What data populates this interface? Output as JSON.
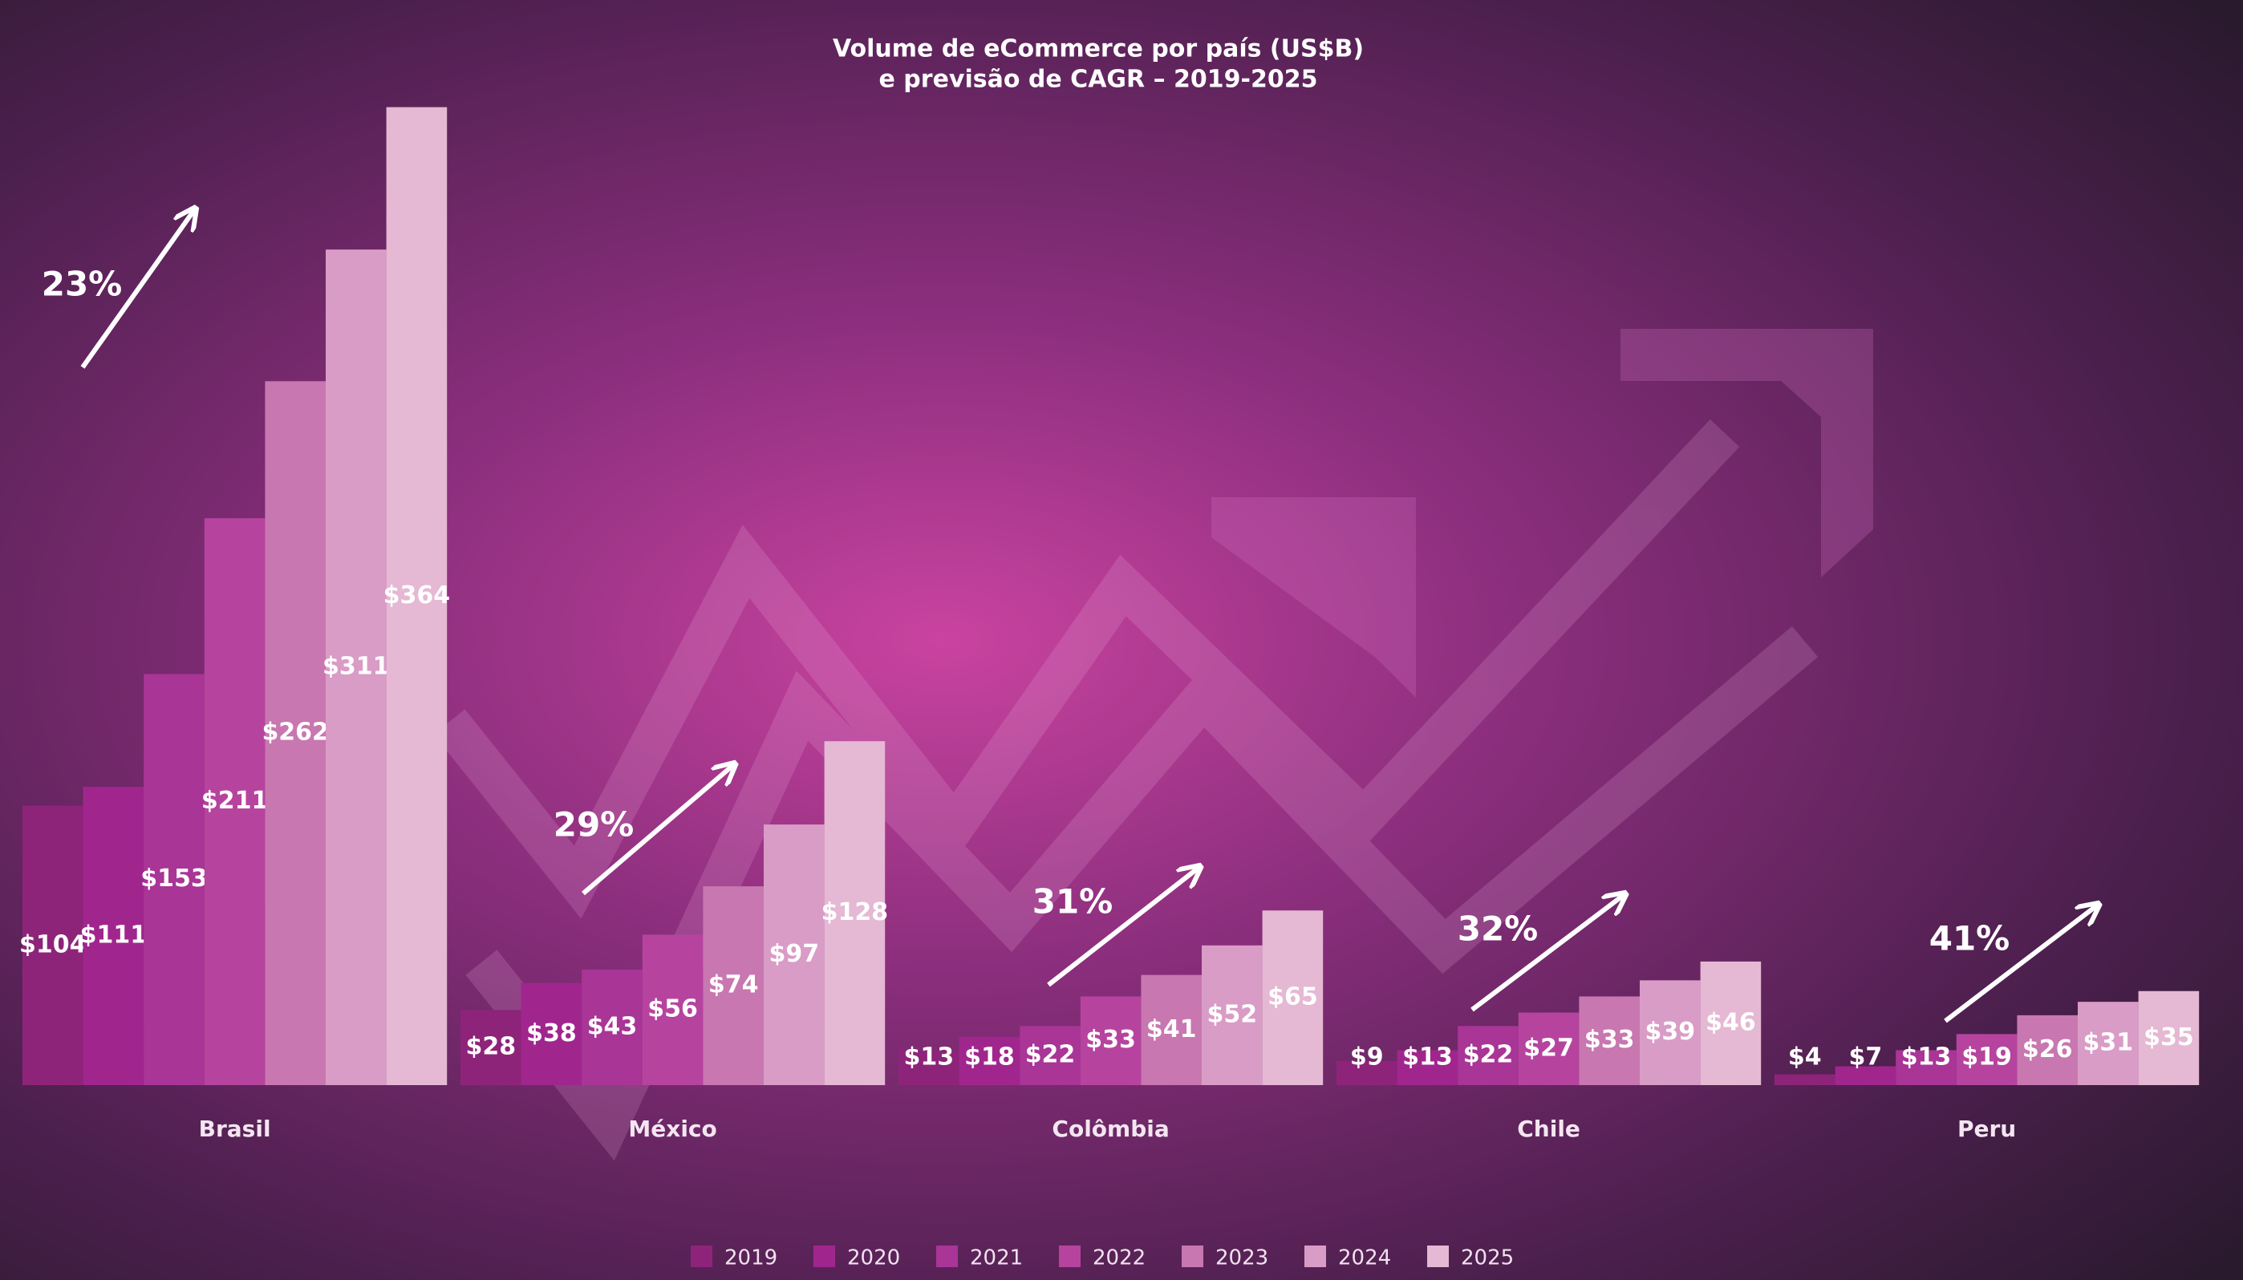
{
  "chart_data": {
    "type": "bar",
    "title": "Volume de eCommerce por país (US$B)",
    "subtitle": "e previsão de CAGR – 2019-2025",
    "categories": [
      "Brasil",
      "México",
      "Colômbia",
      "Chile",
      "Peru"
    ],
    "series": [
      {
        "name": "2019",
        "color": "#8e2479",
        "values": [
          104,
          28,
          13,
          9,
          4
        ],
        "value_labels": [
          "$104",
          "$28",
          "$13",
          "$9",
          "$4"
        ]
      },
      {
        "name": "2020",
        "color": "#a0268e",
        "values": [
          111,
          38,
          18,
          13,
          7
        ],
        "value_labels": [
          "$111",
          "$38",
          "$18",
          "$13",
          "$7"
        ]
      },
      {
        "name": "2021",
        "color": "#a93597",
        "values": [
          153,
          43,
          22,
          22,
          13
        ],
        "value_labels": [
          "$153",
          "$43",
          "$22",
          "$22",
          "$13"
        ]
      },
      {
        "name": "2022",
        "color": "#b6449f",
        "values": [
          211,
          56,
          33,
          27,
          19
        ],
        "value_labels": [
          "$211",
          "$56",
          "$33",
          "$27",
          "$19"
        ]
      },
      {
        "name": "2023",
        "color": "#c877b0",
        "values": [
          262,
          74,
          41,
          33,
          26
        ],
        "value_labels": [
          "$262",
          "$74",
          "$41",
          "$33",
          "$26"
        ]
      },
      {
        "name": "2024",
        "color": "#d99cc6",
        "values": [
          311,
          97,
          52,
          39,
          31
        ],
        "value_labels": [
          "$311",
          "$97",
          "$52",
          "$39",
          "$31"
        ]
      },
      {
        "name": "2025",
        "color": "#e5b8d3",
        "values": [
          364,
          128,
          65,
          46,
          35
        ],
        "value_labels": [
          "$364",
          "$128",
          "$65",
          "$46",
          "$35"
        ]
      }
    ],
    "annotations": [
      "23%",
      "29%",
      "31%",
      "32%",
      "41%"
    ],
    "ylim": [
      0,
      380
    ],
    "legend": "bottom"
  }
}
